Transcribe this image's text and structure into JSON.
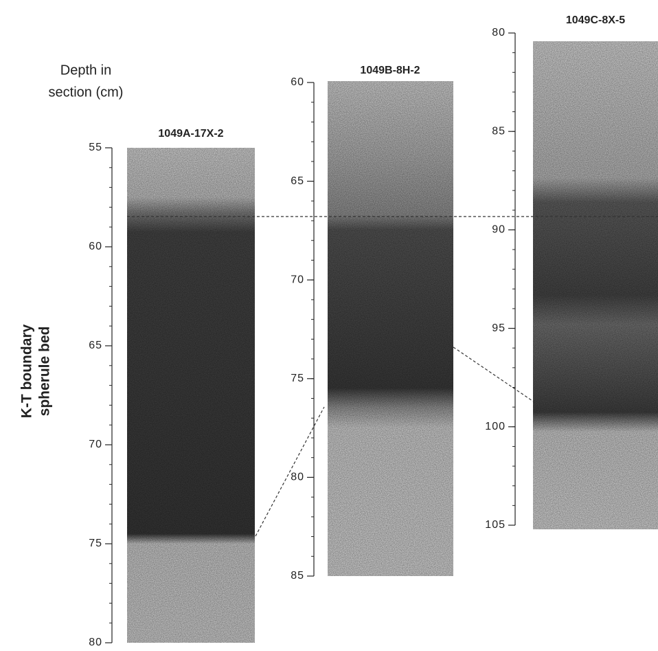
{
  "depth_label": [
    "Depth in",
    "section (cm)"
  ],
  "bed_label": [
    "K-T boundary",
    "spherule bed"
  ],
  "cores": [
    {
      "title": "1049A-17X-2",
      "ticks": [
        55,
        60,
        65,
        70,
        75,
        80
      ]
    },
    {
      "title": "1049B-8H-2",
      "ticks": [
        60,
        65,
        70,
        75,
        80,
        85
      ]
    },
    {
      "title": "1049C-8X-5",
      "ticks": [
        80,
        85,
        90,
        95,
        100,
        105
      ]
    }
  ]
}
